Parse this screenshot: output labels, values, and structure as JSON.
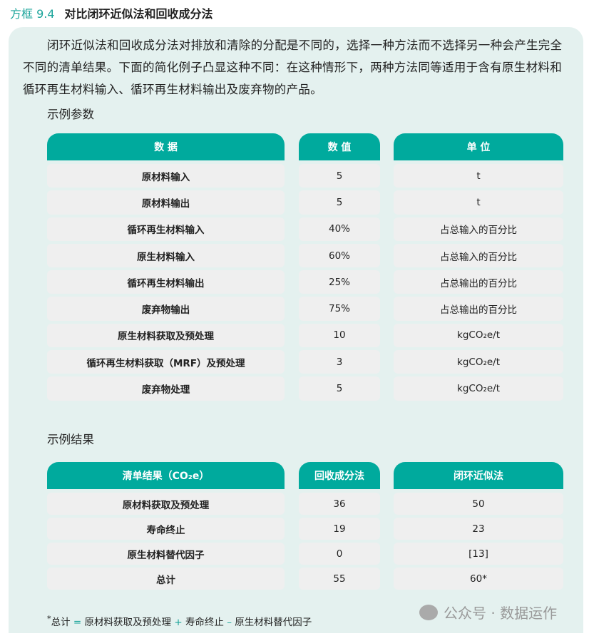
{
  "title": {
    "number": "方框 9.4",
    "text": "对比闭环近似法和回收成分法"
  },
  "paragraph": "闭环近似法和回收成分法对排放和清除的分配是不同的，选择一种方法而不选择另一种会产生完全不同的清单结果。下面的简化例子凸显这种不同：在这种情形下，两种方法同等适用于含有原生材料和循环再生材料输入、循环再生材料输出及废弃物的产品。",
  "params": {
    "heading": "示例参数",
    "headers": [
      "数 据",
      "数 值",
      "单 位"
    ],
    "rows": [
      [
        "原材料输入",
        "5",
        "t"
      ],
      [
        "原材料输出",
        "5",
        "t"
      ],
      [
        "循环再生材料输入",
        "40%",
        "占总输入的百分比"
      ],
      [
        "原生材料输入",
        "60%",
        "占总输入的百分比"
      ],
      [
        "循环再生材料输出",
        "25%",
        "占总输出的百分比"
      ],
      [
        "废弃物输出",
        "75%",
        "占总输出的百分比"
      ],
      [
        "原生材料获取及预处理",
        "10",
        "kgCO₂e/t"
      ],
      [
        "循环再生材料获取（MRF）及预处理",
        "3",
        "kgCO₂e/t"
      ],
      [
        "废弃物处理",
        "5",
        "kgCO₂e/t"
      ]
    ]
  },
  "results": {
    "heading": "示例结果",
    "headers": [
      "清单结果（CO₂e）",
      "回收成分法",
      "闭环近似法"
    ],
    "rows": [
      [
        "原材料获取及预处理",
        "36",
        "50"
      ],
      [
        "寿命终止",
        "19",
        "23"
      ],
      [
        "原生材料替代因子",
        "0",
        "[13]"
      ],
      [
        "总计",
        "55",
        "60*"
      ]
    ]
  },
  "footnote": {
    "mark": "*",
    "parts": [
      "总计",
      "=",
      "原材料获取及预处理",
      "+",
      "寿命终止",
      "–",
      "原生材料替代因子"
    ]
  },
  "watermark": "公众号 · 数据运作",
  "colors": {
    "accent": "#00aa9d",
    "panel": "#e4f1ef",
    "row": "#efefef"
  }
}
